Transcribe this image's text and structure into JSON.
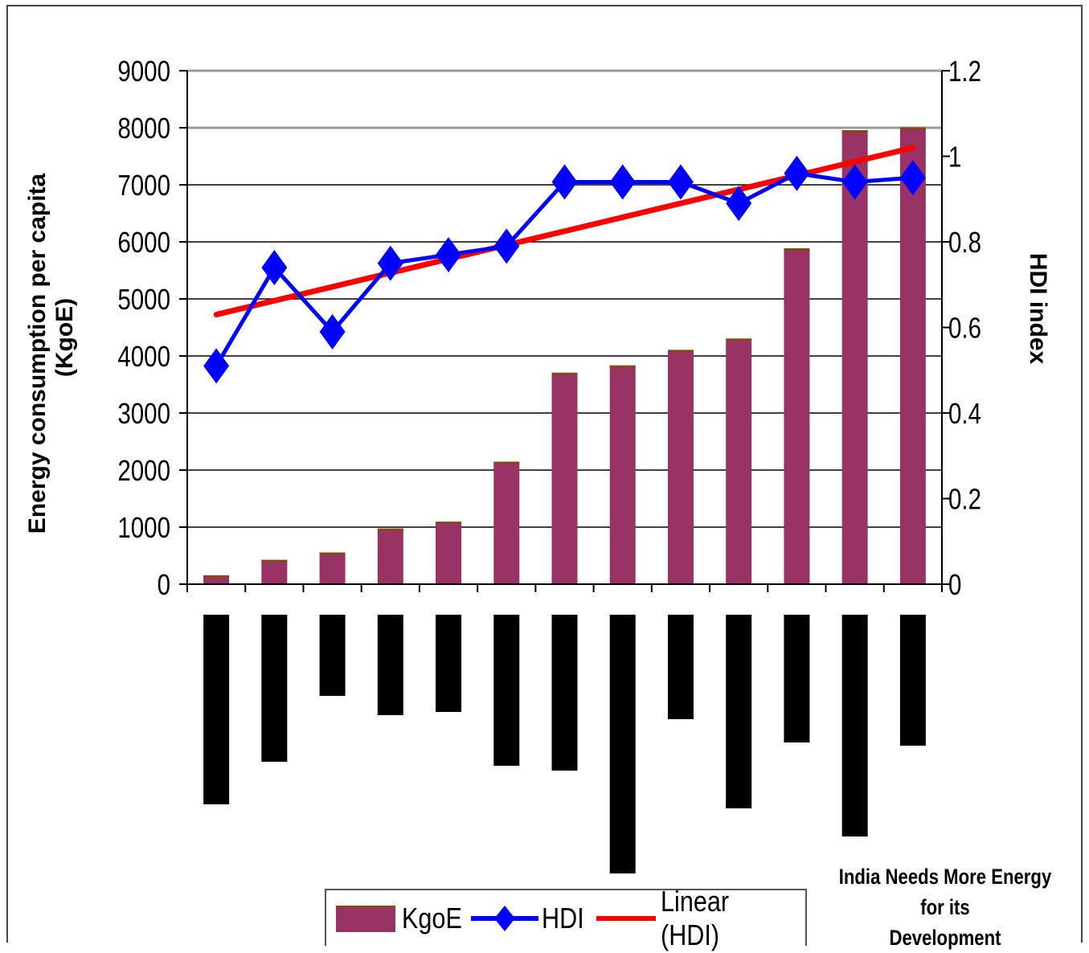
{
  "chart_data": {
    "type": "bar",
    "y_label": "Energy consumption per capita (KgoE)",
    "y_label_lines": [
      "Energy consumption per capita",
      "(KgoE)"
    ],
    "y2_label": "HDI index",
    "ylim": [
      0,
      9000
    ],
    "y_ticks": [
      "9000",
      "8000",
      "7000",
      "6000",
      "5000",
      "4000",
      "3000",
      "2000",
      "1000",
      "0"
    ],
    "y2lim": [
      0,
      1.2
    ],
    "y2_ticks": [
      "1.2",
      "1",
      "0.8",
      "0.6",
      "0.4",
      "0.2",
      "0"
    ],
    "category_count": 13,
    "series": [
      {
        "name": "KgoE",
        "type": "bar",
        "color": "#993366",
        "values": [
          150,
          420,
          550,
          970,
          1090,
          2140,
          3700,
          3830,
          4100,
          4300,
          5880,
          7950,
          8000
        ]
      },
      {
        "name": "HDI",
        "type": "line",
        "axis": "y2",
        "color": "#0000ff",
        "marker": "diamond",
        "values": [
          0.51,
          0.74,
          0.59,
          0.75,
          0.77,
          0.79,
          0.94,
          0.94,
          0.94,
          0.89,
          0.96,
          0.94,
          0.95
        ]
      },
      {
        "name": "Linear (HDI)",
        "type": "line",
        "axis": "y2",
        "color": "#ff0000",
        "values": [
          0.63,
          1.02
        ]
      }
    ],
    "legend_position": "bottom",
    "grid": true
  },
  "caption": {
    "line1": "India Needs More Energy for its",
    "line2": "Development"
  }
}
